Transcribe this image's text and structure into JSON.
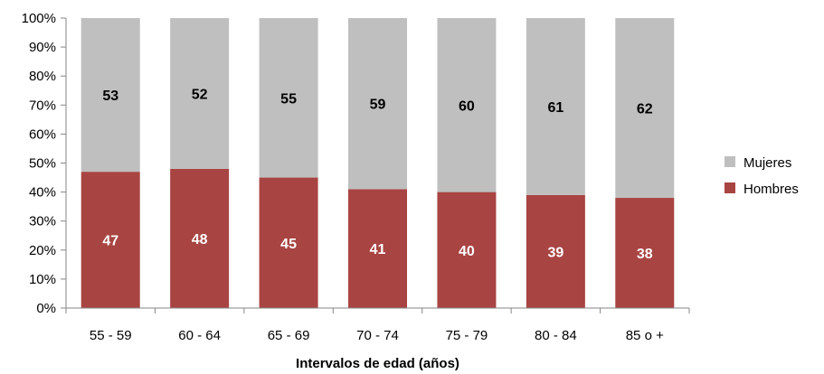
{
  "chart_data": {
    "type": "bar",
    "stacked": true,
    "percent": true,
    "categories": [
      "55 - 59",
      "60 - 64",
      "65 - 69",
      "70 - 74",
      "75 - 79",
      "80 - 84",
      "85 o +"
    ],
    "series": [
      {
        "name": "Hombres",
        "values": [
          47,
          48,
          45,
          41,
          40,
          39,
          38
        ],
        "color": "#A84442",
        "label_color": "#FFFFFF"
      },
      {
        "name": "Mujeres",
        "values": [
          53,
          52,
          55,
          59,
          60,
          61,
          62
        ],
        "color": "#BFBFBF",
        "label_color": "#000000"
      }
    ],
    "yticks": [
      "0%",
      "10%",
      "20%",
      "30%",
      "40%",
      "50%",
      "60%",
      "70%",
      "80%",
      "90%",
      "100%"
    ],
    "ylim": [
      0,
      100
    ],
    "xlabel": "Intervalos de edad (años)",
    "ylabel": "",
    "legend_position": "right",
    "legend_order": [
      "Mujeres",
      "Hombres"
    ],
    "grid": false
  }
}
